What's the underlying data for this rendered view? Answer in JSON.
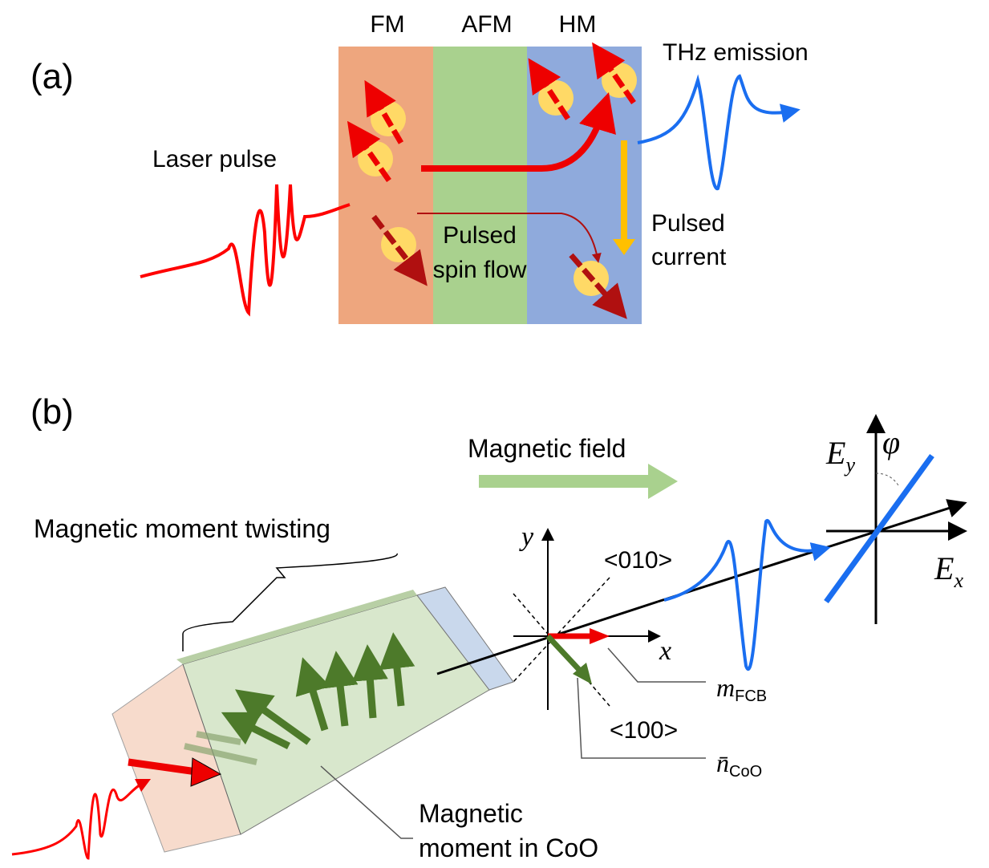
{
  "panel_a": {
    "label": "(a)",
    "layers": [
      "FM",
      "AFM",
      "HM"
    ],
    "laser_label": "Laser pulse",
    "spin_flow_label": [
      "Pulsed",
      "spin flow"
    ],
    "current_label": [
      "Pulsed",
      "current"
    ],
    "thz_label": "THz emission"
  },
  "panel_b": {
    "label": "(b)",
    "field_label": "Magnetic field",
    "twisting_label": "Magnetic moment twisting",
    "moment_label": [
      "Magnetic",
      "moment in CoO"
    ],
    "axes": {
      "y": "y",
      "x": "x",
      "dir_010": "<010>",
      "dir_100": "<100>"
    },
    "m_label": {
      "symbol": "m",
      "subscript": "FCB"
    },
    "n_label": {
      "symbol": "n̄",
      "subscript": "CoO"
    },
    "field_axes": {
      "ey": "E",
      "ey_sub": "y",
      "ex": "E",
      "ex_sub": "x",
      "phi": "φ"
    }
  }
}
